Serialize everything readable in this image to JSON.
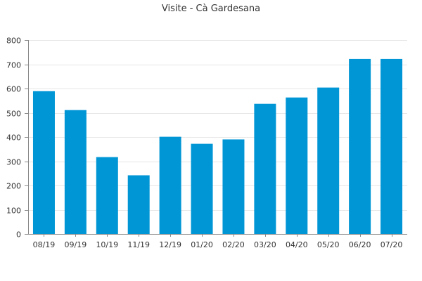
{
  "chart_data": {
    "type": "bar",
    "title": "Visite - Cà Gardesana",
    "xlabel": "",
    "ylabel": "",
    "categories": [
      "08/19",
      "09/19",
      "10/19",
      "11/19",
      "12/19",
      "01/20",
      "02/20",
      "03/20",
      "04/20",
      "05/20",
      "06/20",
      "07/20"
    ],
    "values": [
      589,
      511,
      317,
      242,
      401,
      372,
      390,
      537,
      563,
      604,
      722,
      722
    ],
    "ylim": [
      0,
      800
    ],
    "yticks": [
      0,
      100,
      200,
      300,
      400,
      500,
      600,
      700,
      800
    ],
    "grid": true,
    "legend": "none",
    "bar_color": "#0096d6",
    "grid_color": "#e6e6e6",
    "axis_color": "#888888",
    "text_color": "#333333"
  }
}
